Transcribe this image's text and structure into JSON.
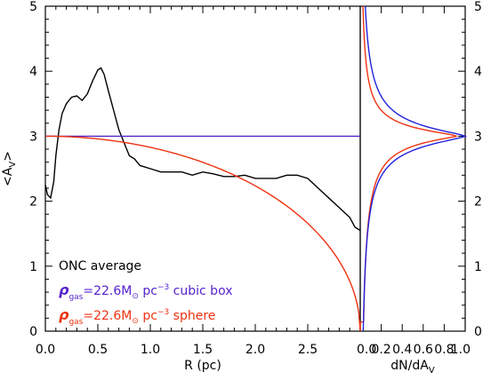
{
  "chart_data": [
    {
      "type": "line",
      "xlabel": "R (pc)",
      "ylabel": "<A",
      "ylabel_sub": "V",
      "ylabel_close": ">",
      "xlim": [
        0.0,
        3.0
      ],
      "ylim": [
        0,
        5
      ],
      "xticks": [
        0.0,
        0.5,
        1.0,
        1.5,
        2.0,
        2.5
      ],
      "xtick_labels": [
        "0.0",
        "0.5",
        "1.0",
        "1.5",
        "2.0",
        "2.5"
      ],
      "yticks": [
        0,
        1,
        2,
        3,
        4,
        5
      ],
      "ytick_labels": [
        "0",
        "1",
        "2",
        "3",
        "4",
        "5"
      ],
      "legend": {
        "position": "bottom-left",
        "entries": [
          {
            "text": "ONC average",
            "color": "#000000"
          },
          {
            "symbol": "ρ",
            "sub": "gas",
            "text": "=22.6M",
            "sun": "⊙",
            "unit": " pc",
            "sup": "−3",
            "tail": " cubic box",
            "color": "#5522cc"
          },
          {
            "symbol": "ρ",
            "sub": "gas",
            "text": "=22.6M",
            "sun": "⊙",
            "unit": " pc",
            "sup": "−3",
            "tail": " sphere",
            "color": "#ee3311"
          }
        ]
      },
      "series": [
        {
          "name": "ONC average",
          "color": "#000000",
          "x": [
            0.0,
            0.02,
            0.05,
            0.08,
            0.1,
            0.13,
            0.16,
            0.2,
            0.25,
            0.3,
            0.35,
            0.4,
            0.45,
            0.5,
            0.53,
            0.56,
            0.6,
            0.65,
            0.7,
            0.75,
            0.8,
            0.85,
            0.9,
            1.0,
            1.1,
            1.2,
            1.3,
            1.4,
            1.5,
            1.6,
            1.7,
            1.8,
            1.9,
            2.0,
            2.1,
            2.2,
            2.3,
            2.4,
            2.5,
            2.6,
            2.7,
            2.8,
            2.9,
            2.95,
            3.0
          ],
          "y": [
            2.25,
            2.1,
            2.05,
            2.3,
            2.7,
            3.1,
            3.35,
            3.5,
            3.6,
            3.62,
            3.55,
            3.65,
            3.85,
            4.02,
            4.05,
            3.95,
            3.7,
            3.4,
            3.1,
            2.9,
            2.7,
            2.65,
            2.55,
            2.5,
            2.45,
            2.45,
            2.45,
            2.4,
            2.45,
            2.42,
            2.38,
            2.38,
            2.4,
            2.35,
            2.35,
            2.35,
            2.4,
            2.4,
            2.35,
            2.2,
            2.05,
            1.9,
            1.75,
            1.6,
            1.55
          ]
        },
        {
          "name": "cubic box",
          "color": "#5522cc",
          "x": [
            0.0,
            3.0
          ],
          "y": [
            3.0,
            3.0
          ]
        },
        {
          "name": "sphere",
          "color": "#ee3311",
          "model": "sphere",
          "R0": 3.0,
          "A0": 3.0
        }
      ]
    },
    {
      "type": "line",
      "xlabel": "dN/dA",
      "xlabel_sub": "V",
      "xlim": [
        0.0,
        1.0
      ],
      "ylim": [
        0,
        5
      ],
      "xticks": [
        0.0,
        0.2,
        0.4,
        0.6,
        0.8,
        1.0
      ],
      "xtick_labels": [
        "0.0",
        "0.2",
        "0.4",
        "0.6",
        "0.8",
        "1.0"
      ],
      "yticks": [
        0,
        1,
        2,
        3,
        4,
        5
      ],
      "ytick_labels": [
        "0",
        "1",
        "2",
        "3",
        "4",
        "5"
      ],
      "series": [
        {
          "color": "#2222dd",
          "peak_at": 3.0,
          "shape": "box"
        },
        {
          "color": "#ee3311",
          "peak_at": 3.0,
          "shape": "sphere"
        }
      ]
    }
  ],
  "colors": {
    "axis": "#000000",
    "box": "#5522cc",
    "sphere": "#ee3311",
    "onc": "#000000",
    "right_blue": "#2222dd"
  }
}
